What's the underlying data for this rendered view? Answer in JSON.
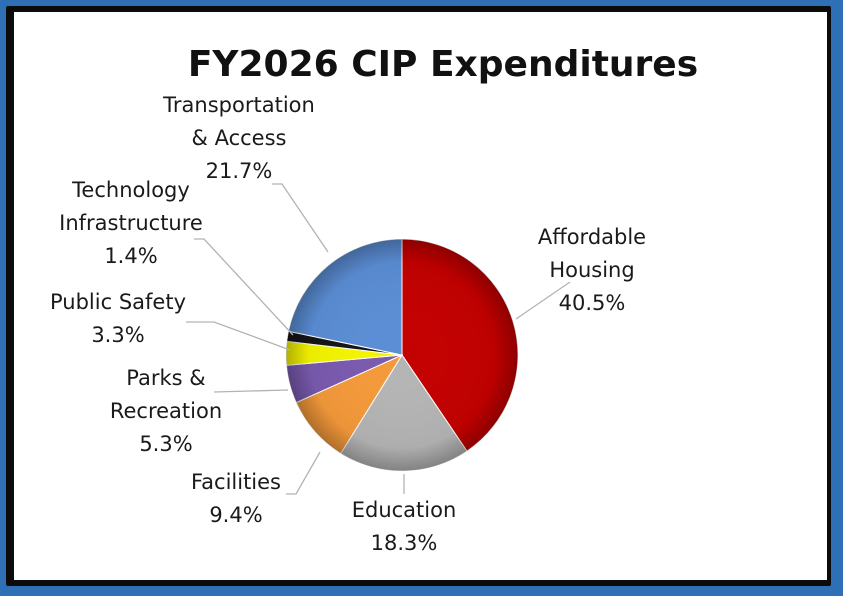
{
  "chart_data": {
    "type": "pie",
    "title": "FY2026 CIP Expenditures",
    "slices": [
      {
        "label_lines": [
          "Affordable",
          "Housing"
        ],
        "value": 40.5,
        "value_label": "40.5%",
        "color": "#c40000"
      },
      {
        "label_lines": [
          "Education"
        ],
        "value": 18.3,
        "value_label": "18.3%",
        "color": "#b5b5b5"
      },
      {
        "label_lines": [
          "Facilities"
        ],
        "value": 9.4,
        "value_label": "9.4%",
        "color": "#f59a3a"
      },
      {
        "label_lines": [
          "Parks &",
          "Recreation"
        ],
        "value": 5.3,
        "value_label": "5.3%",
        "color": "#7a5ab0"
      },
      {
        "label_lines": [
          "Public Safety"
        ],
        "value": 3.3,
        "value_label": "3.3%",
        "color": "#f5f500"
      },
      {
        "label_lines": [
          "Technology",
          "Infrastructure"
        ],
        "value": 1.4,
        "value_label": "1.4%",
        "color": "#151515"
      },
      {
        "label_lines": [
          "Transportation",
          "& Access"
        ],
        "value": 21.7,
        "value_label": "21.7%",
        "color": "#5b8ed6"
      }
    ],
    "start_angle_deg": 0,
    "direction": "clockwise"
  }
}
